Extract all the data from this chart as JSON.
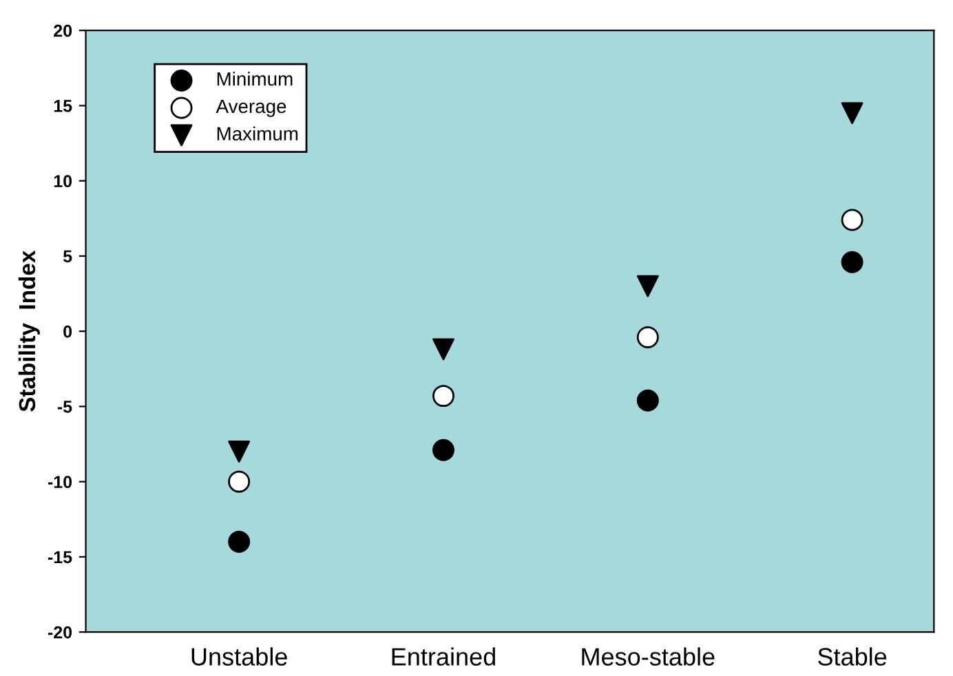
{
  "chart_data": {
    "type": "scatter",
    "ylabel": "Stability  Index",
    "categories": [
      "Unstable",
      "Entrained",
      "Meso-stable",
      "Stable"
    ],
    "ylim": [
      -20,
      20
    ],
    "yticks": [
      -20,
      -15,
      -10,
      -5,
      0,
      5,
      10,
      15,
      20
    ],
    "grid": false,
    "legend": "top left",
    "series": [
      {
        "name": "Minimum",
        "color": "#000000",
        "marker": "circle",
        "values": [
          -14,
          -7.9,
          -4.6,
          4.6
        ]
      },
      {
        "name": "Average",
        "color": "#ffffff",
        "marker": "circle",
        "values": [
          -10,
          -4.3,
          -0.4,
          7.4
        ]
      },
      {
        "name": "Maximum",
        "color": "#000000",
        "marker": "triangle",
        "values": [
          -8,
          -1.2,
          3.0,
          14.5
        ]
      }
    ]
  }
}
